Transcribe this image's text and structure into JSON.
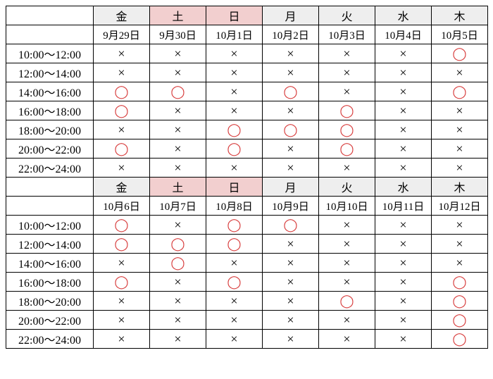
{
  "colors": {
    "weekday_header_bg": "#eeeeee",
    "weekend_header_bg": "#f2cfcf",
    "border": "#000000",
    "x_color": "#000000",
    "o_color": "#d73a3a",
    "background": "#ffffff"
  },
  "marks": {
    "available": "◯",
    "unavailable": "×"
  },
  "day_labels": [
    "金",
    "土",
    "日",
    "月",
    "火",
    "水",
    "木"
  ],
  "weekend_indices": [
    1,
    2
  ],
  "time_slots": [
    "10:00～12:00",
    "12:00～14:00",
    "14:00～16:00",
    "16:00～18:00",
    "18:00～20:00",
    "20:00～22:00",
    "22:00～24:00"
  ],
  "blocks": [
    {
      "dates": [
        "9月29日",
        "9月30日",
        "10月1日",
        "10月2日",
        "10月3日",
        "10月4日",
        "10月5日"
      ],
      "grid": [
        [
          "x",
          "x",
          "x",
          "x",
          "x",
          "x",
          "o"
        ],
        [
          "x",
          "x",
          "x",
          "x",
          "x",
          "x",
          "x"
        ],
        [
          "o",
          "o",
          "x",
          "o",
          "x",
          "x",
          "o"
        ],
        [
          "o",
          "x",
          "x",
          "x",
          "o",
          "x",
          "x"
        ],
        [
          "x",
          "x",
          "o",
          "o",
          "o",
          "x",
          "x"
        ],
        [
          "o",
          "x",
          "o",
          "x",
          "o",
          "x",
          "x"
        ],
        [
          "x",
          "x",
          "x",
          "x",
          "x",
          "x",
          "x"
        ]
      ]
    },
    {
      "dates": [
        "10月6日",
        "10月7日",
        "10月8日",
        "10月9日",
        "10月10日",
        "10月11日",
        "10月12日"
      ],
      "grid": [
        [
          "o",
          "x",
          "o",
          "o",
          "x",
          "x",
          "x"
        ],
        [
          "o",
          "o",
          "o",
          "x",
          "x",
          "x",
          "x"
        ],
        [
          "x",
          "o",
          "x",
          "x",
          "x",
          "x",
          "x"
        ],
        [
          "o",
          "x",
          "o",
          "x",
          "x",
          "x",
          "o"
        ],
        [
          "x",
          "x",
          "x",
          "x",
          "o",
          "x",
          "o"
        ],
        [
          "x",
          "x",
          "x",
          "x",
          "x",
          "x",
          "o"
        ],
        [
          "x",
          "x",
          "x",
          "x",
          "x",
          "x",
          "o"
        ]
      ]
    }
  ]
}
